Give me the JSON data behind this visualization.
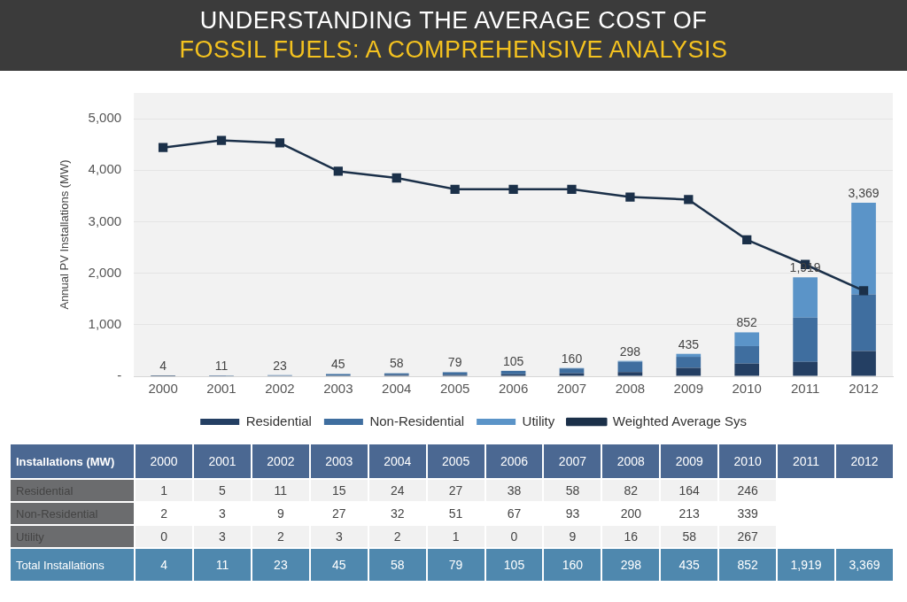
{
  "chart_data": {
    "type": "bar",
    "title": "UNDERSTANDING THE AVERAGE COST OF FOSSIL FUELS: A COMPREHENSIVE ANALYSIS",
    "ylabel": "Annual PV Installations (MW)",
    "categories": [
      "2000",
      "2001",
      "2002",
      "2003",
      "2004",
      "2005",
      "2006",
      "2007",
      "2008",
      "2009",
      "2010",
      "2011",
      "2012"
    ],
    "stacked": true,
    "series": [
      {
        "name": "Residential",
        "color": "#243f63",
        "values": [
          1,
          5,
          11,
          15,
          24,
          27,
          38,
          58,
          82,
          164,
          246,
          280,
          490
        ],
        "value_labels": [
          "1",
          "5",
          "11",
          "15",
          "24",
          "27",
          "38",
          "58",
          "82",
          "164",
          "246",
          null,
          null
        ]
      },
      {
        "name": "Non-Residential",
        "color": "#3f6e9f",
        "values": [
          2,
          3,
          9,
          27,
          32,
          51,
          67,
          93,
          200,
          213,
          339,
          860,
          1100
        ],
        "value_labels": [
          "2",
          "3",
          "9",
          "27",
          "32",
          "51",
          "67",
          "93",
          "200",
          "213",
          "339",
          null,
          null
        ]
      },
      {
        "name": "Utility",
        "color": "#5b94c8",
        "values": [
          0,
          3,
          2,
          3,
          2,
          1,
          0,
          9,
          16,
          58,
          267,
          779,
          1779
        ],
        "value_labels": [
          "0",
          "3",
          "2",
          "3",
          "2",
          "1",
          "0",
          "9",
          "16",
          "58",
          "267",
          null,
          null
        ]
      },
      {
        "name": "Weighted Average Sys",
        "type": "line",
        "color": "#1b3049",
        "values": [
          4440,
          4580,
          4530,
          3980,
          3850,
          3630,
          3630,
          3630,
          3480,
          3430,
          2650,
          2170,
          1660
        ]
      }
    ],
    "totals": [
      "4",
      "11",
      "23",
      "45",
      "58",
      "79",
      "105",
      "160",
      "298",
      "435",
      "852",
      "1,919",
      "3,369"
    ],
    "ylim": [
      0,
      5500
    ],
    "yticks": [
      {
        "value": 0,
        "label": "-"
      },
      {
        "value": 1000,
        "label": "1,000"
      },
      {
        "value": 2000,
        "label": "2,000"
      },
      {
        "value": 3000,
        "label": "3,000"
      },
      {
        "value": 4000,
        "label": "4,000"
      },
      {
        "value": 5000,
        "label": "5,000"
      }
    ],
    "grid": "y",
    "legend": "bottom",
    "marker": "square",
    "annotations": [
      "Installations (MW)",
      "Total Installations"
    ]
  }
}
